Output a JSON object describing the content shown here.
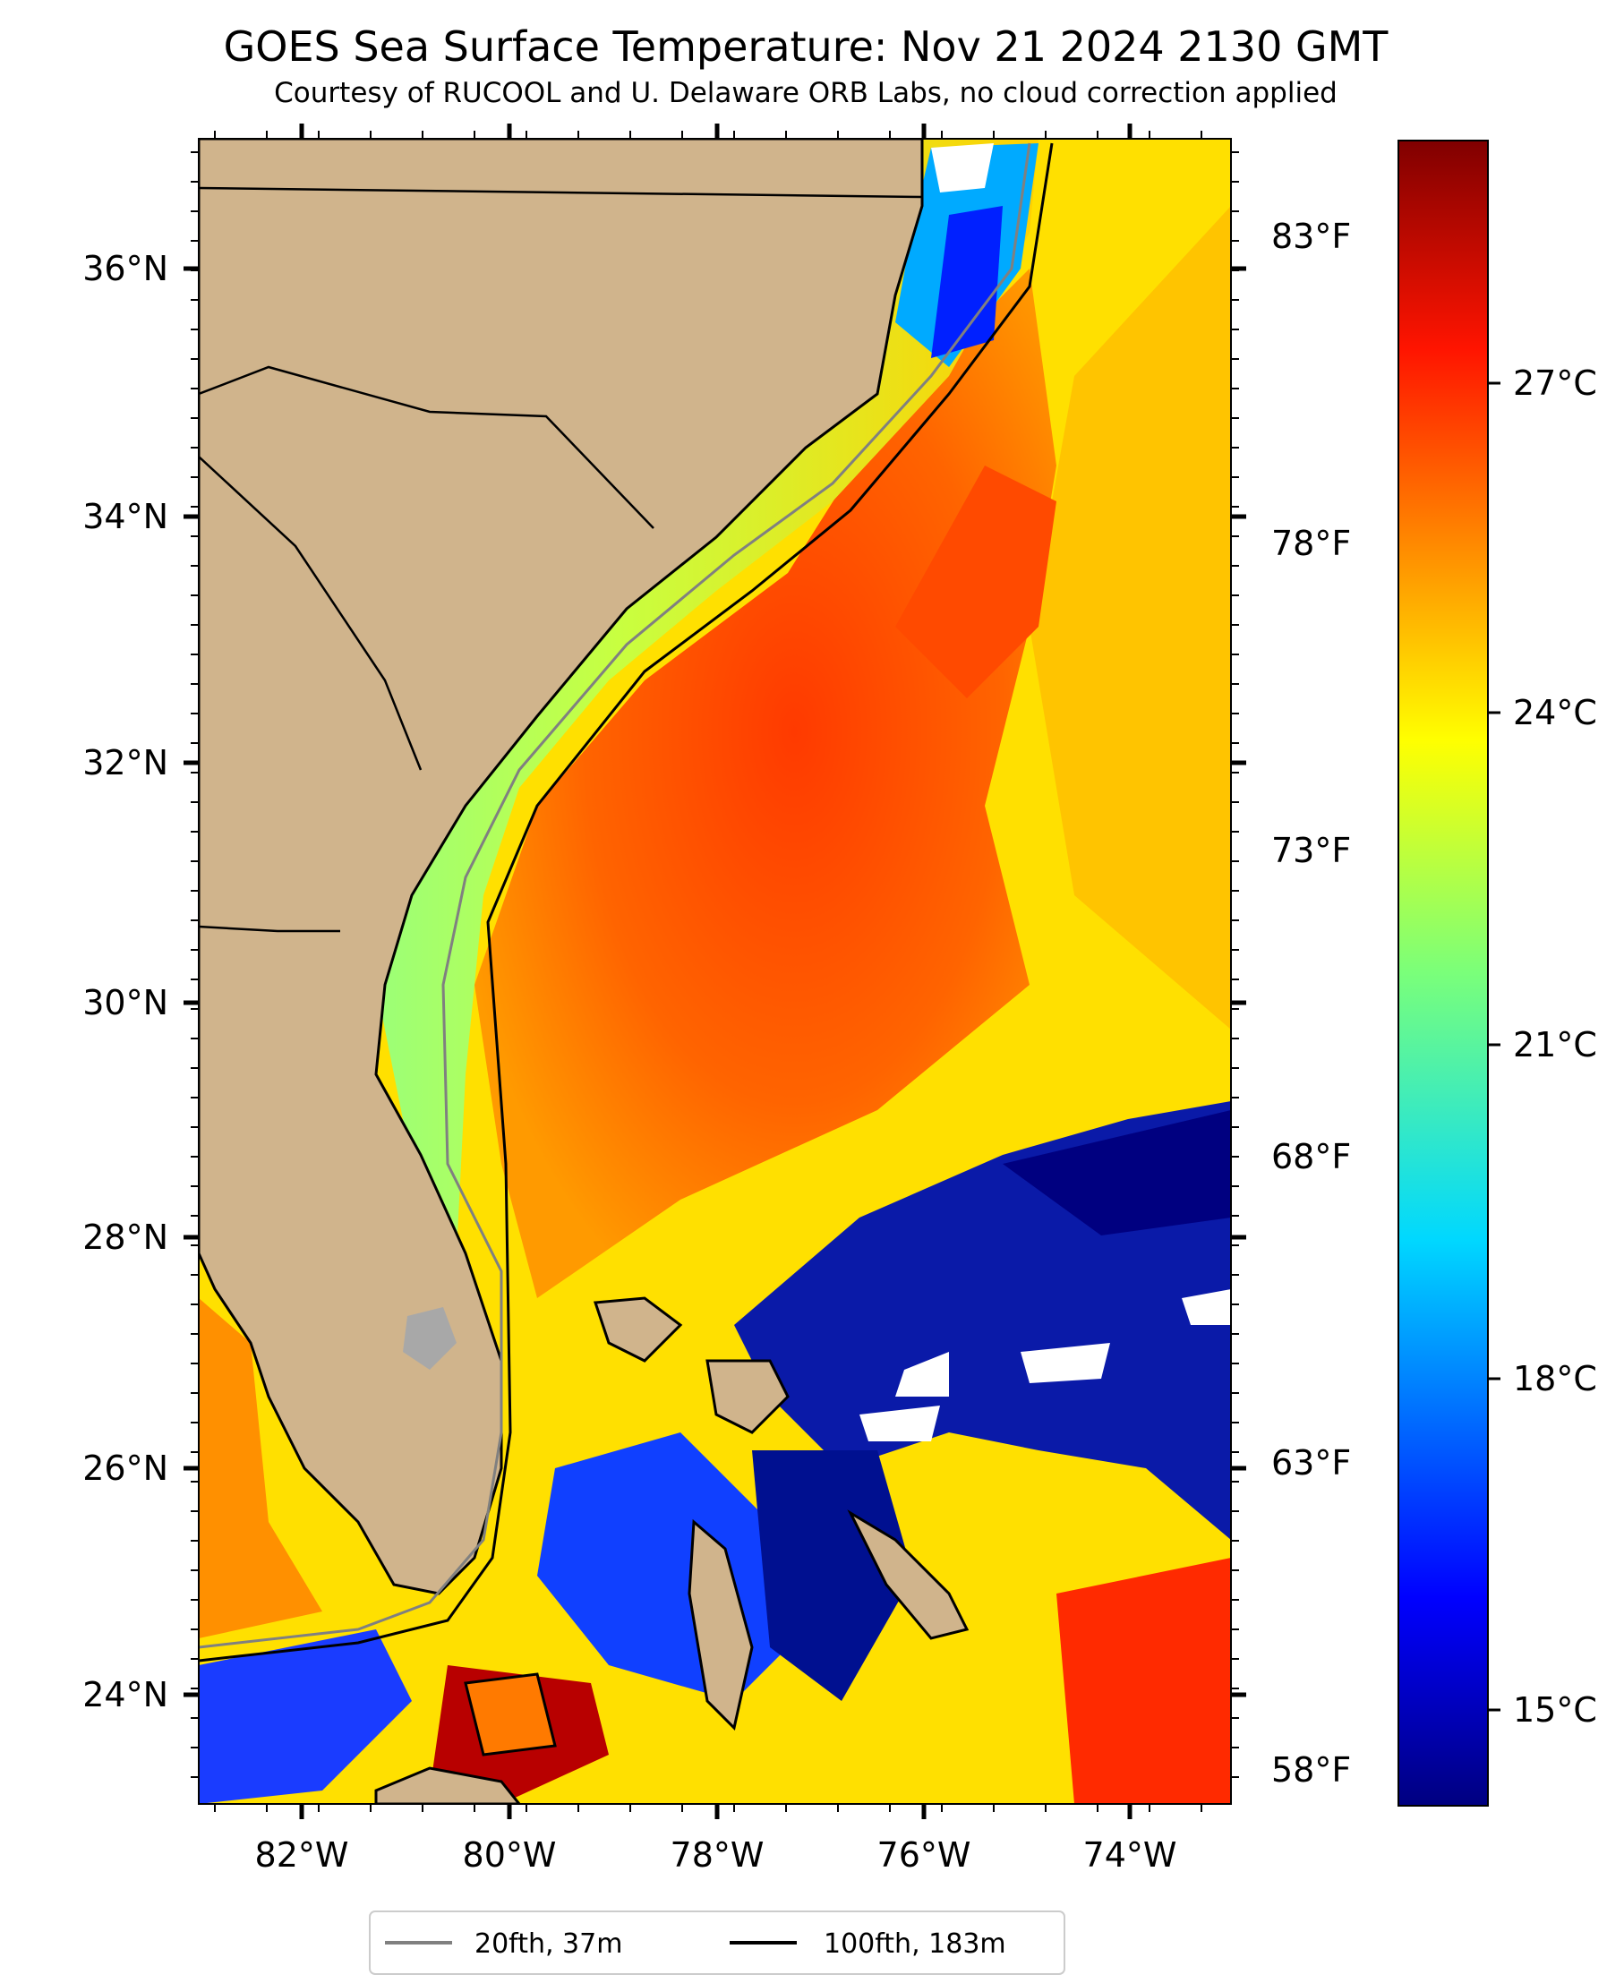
{
  "title": "GOES Sea Surface Temperature: Nov 21 2024 2130 GMT",
  "subtitle": "Courtesy of RUCOOL and U. Delaware ORB Labs, no cloud correction applied",
  "map": {
    "lat_labels": [
      "36°N",
      "34°N",
      "32°N",
      "30°N",
      "28°N",
      "26°N",
      "24°N"
    ],
    "lon_labels": [
      "82°W",
      "80°W",
      "78°W",
      "76°W",
      "74°W"
    ],
    "fahrenheit_labels": [
      "83°F",
      "78°F",
      "73°F",
      "68°F",
      "63°F",
      "58°F"
    ],
    "land_color": "#d0b48c",
    "colormap": "jet"
  },
  "colorbar": {
    "labels": [
      "27°C",
      "24°C",
      "21°C",
      "18°C",
      "15°C"
    ]
  },
  "legend": {
    "items": [
      {
        "label": "20fth, 37m",
        "color": "#808080"
      },
      {
        "label": "100fth, 183m",
        "color": "#000000"
      }
    ]
  }
}
